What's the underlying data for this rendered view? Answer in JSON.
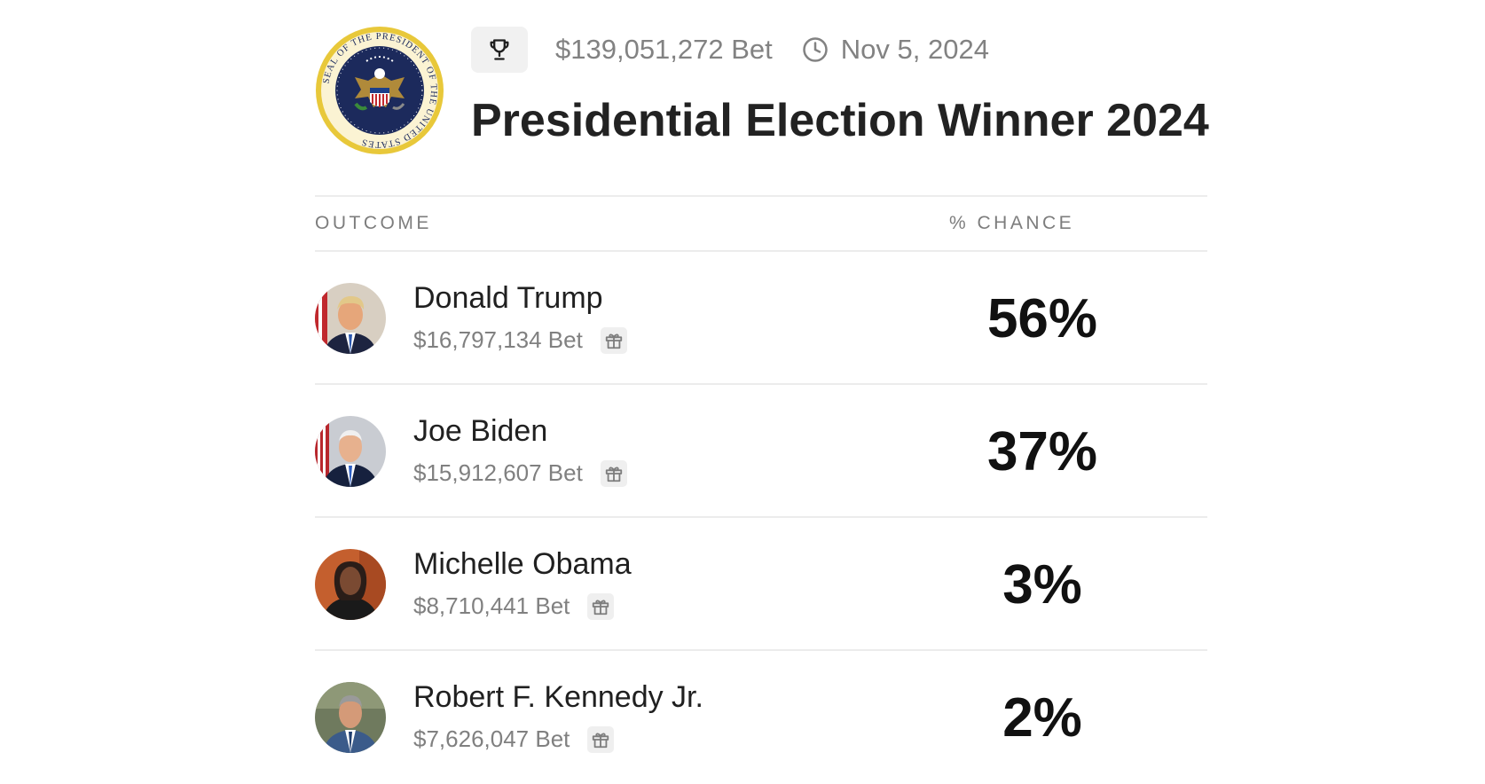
{
  "market": {
    "volume": "$139,051,272 Bet",
    "date": "Nov 5, 2024",
    "title": "Presidential Election Winner 2024",
    "seal_text": "SEAL OF THE PRESIDENT OF THE UNITED STATES"
  },
  "table": {
    "outcome_header": "OUTCOME",
    "chance_header": "% CHANCE"
  },
  "outcomes": [
    {
      "name": "Donald Trump",
      "bet": "$16,797,134 Bet",
      "chance": "56%",
      "chance_value": 56
    },
    {
      "name": "Joe Biden",
      "bet": "$15,912,607 Bet",
      "chance": "37%",
      "chance_value": 37
    },
    {
      "name": "Michelle Obama",
      "bet": "$8,710,441 Bet",
      "chance": "3%",
      "chance_value": 3
    },
    {
      "name": "Robert F. Kennedy Jr.",
      "bet": "$7,626,047 Bet",
      "chance": "2%",
      "chance_value": 2
    }
  ],
  "icons": {
    "trophy": "trophy-icon",
    "clock": "clock-icon",
    "gift": "gift-icon"
  },
  "colors": {
    "muted_text": "#828282",
    "divider": "#ececec",
    "seal_gold": "#e8c83a",
    "seal_navy": "#1c2a5c"
  }
}
